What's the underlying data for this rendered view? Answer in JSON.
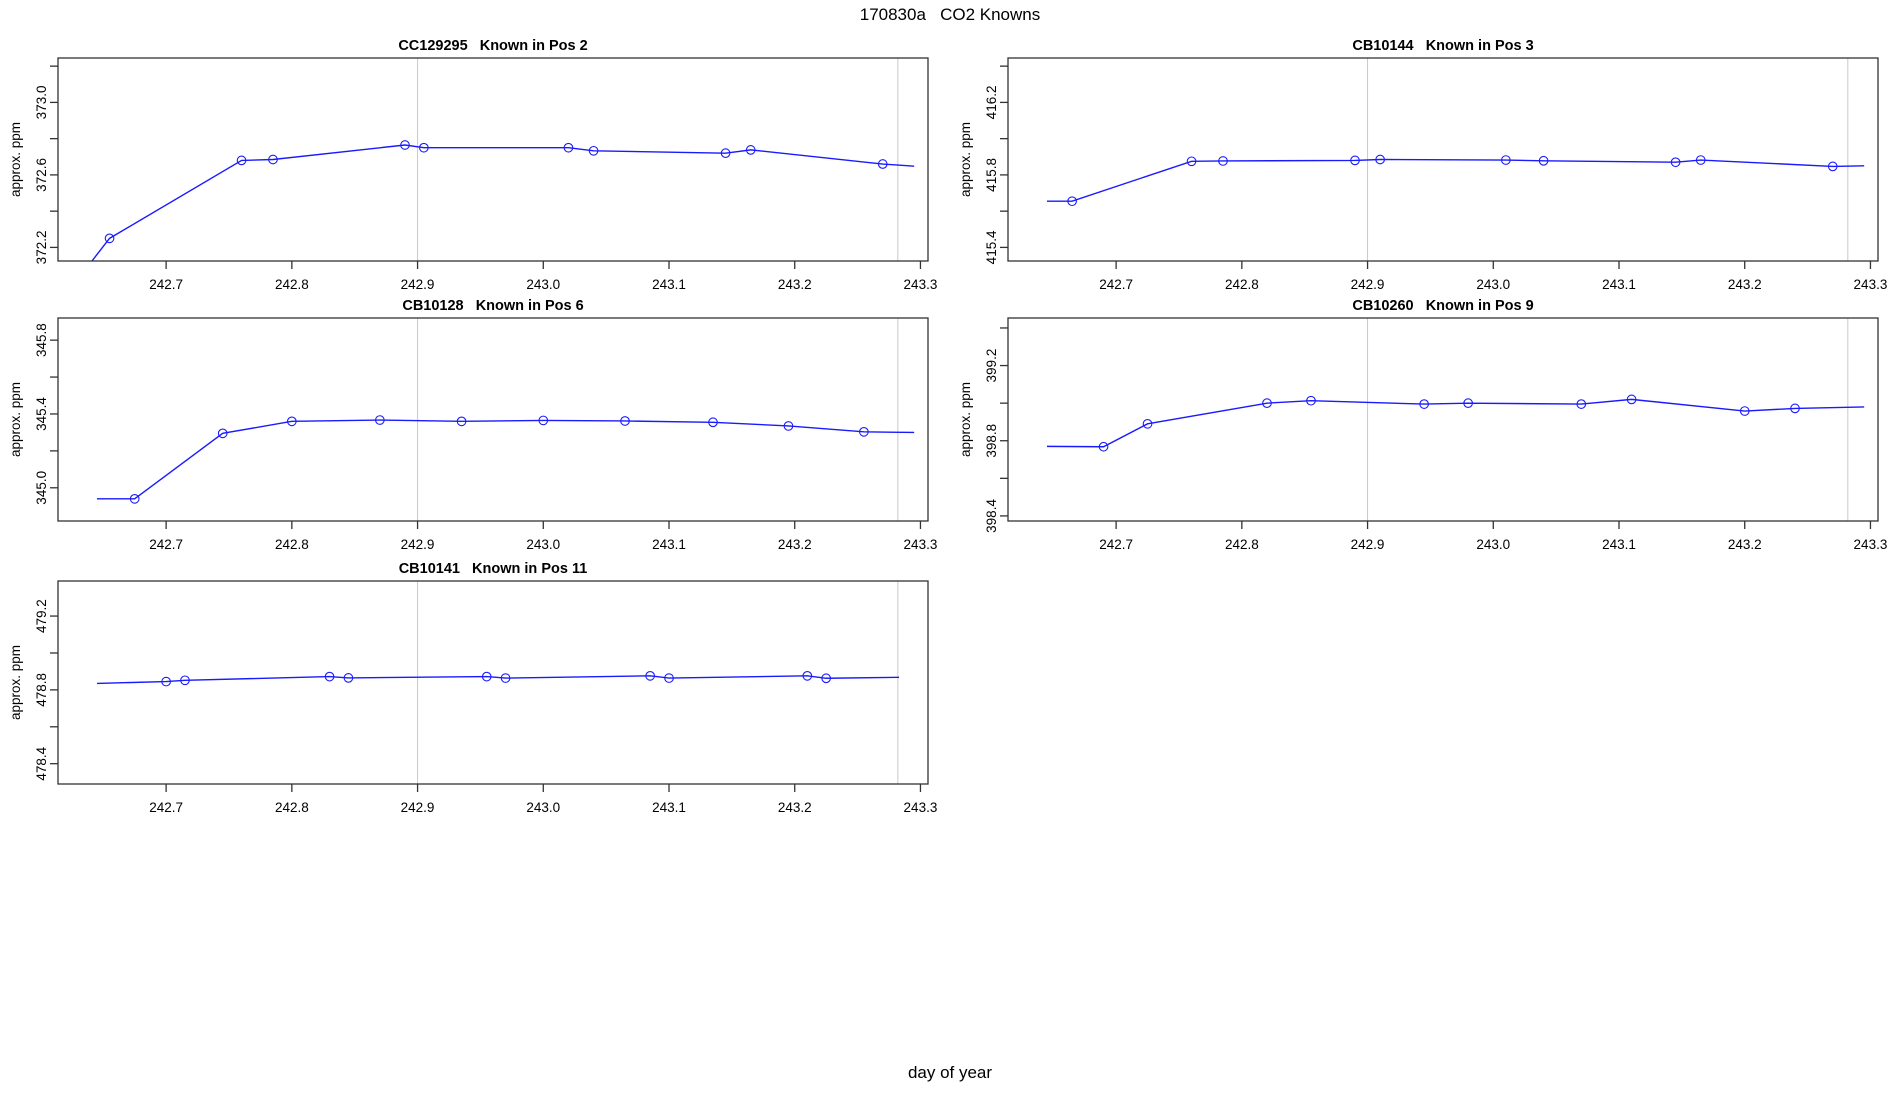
{
  "figure": {
    "title": "170830a   CO2 Knowns",
    "xlabel": "day of year",
    "line_color": "#1a1aff",
    "grid_color": "#c9c9c9",
    "box_color": "#333333",
    "text_color": "#000000",
    "xlim": [
      242.614,
      243.306
    ],
    "x_ticks": [
      {
        "v": 242.7,
        "label": "242.7"
      },
      {
        "v": 242.8,
        "label": "242.8"
      },
      {
        "v": 242.9,
        "label": "242.9"
      },
      {
        "v": 243.0,
        "label": "243.0"
      },
      {
        "v": 243.1,
        "label": "243.1"
      },
      {
        "v": 243.2,
        "label": "243.2"
      },
      {
        "v": 243.3,
        "label": "243.3"
      }
    ],
    "gridlines_x": [
      242.9,
      243.282
    ]
  },
  "chart_data": [
    {
      "type": "line",
      "title": "CC129295   Known in Pos 2",
      "sample": "CC129295",
      "position": "Known in Pos 2",
      "ylabel": "approx. ppm",
      "row": 0,
      "col": 0,
      "ylim": [
        372.125,
        373.245
      ],
      "yticks": [
        {
          "v": 372.2,
          "label": "372.2"
        },
        {
          "v": 372.4,
          "label": ""
        },
        {
          "v": 372.6,
          "label": "372.6"
        },
        {
          "v": 372.8,
          "label": ""
        },
        {
          "v": 373.0,
          "label": "373.0"
        },
        {
          "v": 373.2,
          "label": ""
        }
      ],
      "line": [
        [
          242.641,
          372.125
        ],
        [
          242.655,
          372.25
        ],
        [
          242.76,
          372.68
        ],
        [
          242.785,
          372.685
        ],
        [
          242.89,
          372.765
        ],
        [
          242.905,
          372.75
        ],
        [
          243.02,
          372.75
        ],
        [
          243.04,
          372.733
        ],
        [
          243.145,
          372.72
        ],
        [
          243.165,
          372.738
        ],
        [
          243.27,
          372.66
        ],
        [
          243.295,
          372.648
        ]
      ],
      "points": [
        [
          242.655,
          372.25
        ],
        [
          242.76,
          372.68
        ],
        [
          242.785,
          372.685
        ],
        [
          242.89,
          372.765
        ],
        [
          242.905,
          372.75
        ],
        [
          243.02,
          372.75
        ],
        [
          243.04,
          372.733
        ],
        [
          243.145,
          372.72
        ],
        [
          243.165,
          372.738
        ],
        [
          243.27,
          372.66
        ]
      ]
    },
    {
      "type": "line",
      "title": "CB10144   Known in Pos 3",
      "sample": "CB10144",
      "position": "Known in Pos 3",
      "ylabel": "approx. ppm",
      "row": 0,
      "col": 1,
      "ylim": [
        415.325,
        416.445
      ],
      "yticks": [
        {
          "v": 415.4,
          "label": "415.4"
        },
        {
          "v": 415.6,
          "label": ""
        },
        {
          "v": 415.8,
          "label": "415.8"
        },
        {
          "v": 416.0,
          "label": ""
        },
        {
          "v": 416.2,
          "label": "416.2"
        },
        {
          "v": 416.4,
          "label": ""
        }
      ],
      "line": [
        [
          242.645,
          415.655
        ],
        [
          242.665,
          415.655
        ],
        [
          242.76,
          415.875
        ],
        [
          242.785,
          415.877
        ],
        [
          242.89,
          415.88
        ],
        [
          242.91,
          415.885
        ],
        [
          243.01,
          415.882
        ],
        [
          243.04,
          415.878
        ],
        [
          243.145,
          415.87
        ],
        [
          243.165,
          415.882
        ],
        [
          243.27,
          415.847
        ],
        [
          243.295,
          415.85
        ]
      ],
      "points": [
        [
          242.665,
          415.655
        ],
        [
          242.76,
          415.875
        ],
        [
          242.785,
          415.877
        ],
        [
          242.89,
          415.88
        ],
        [
          242.91,
          415.885
        ],
        [
          243.01,
          415.882
        ],
        [
          243.04,
          415.878
        ],
        [
          243.145,
          415.87
        ],
        [
          243.165,
          415.882
        ],
        [
          243.27,
          415.847
        ]
      ]
    },
    {
      "type": "line",
      "title": "CB10128   Known in Pos 6",
      "sample": "CB10128",
      "position": "Known in Pos 6",
      "ylabel": "approx. ppm",
      "row": 1,
      "col": 0,
      "ylim": [
        344.82,
        345.92
      ],
      "yticks": [
        {
          "v": 345.0,
          "label": "345.0"
        },
        {
          "v": 345.2,
          "label": ""
        },
        {
          "v": 345.4,
          "label": "345.4"
        },
        {
          "v": 345.6,
          "label": ""
        },
        {
          "v": 345.8,
          "label": "345.8"
        }
      ],
      "line": [
        [
          242.645,
          344.94
        ],
        [
          242.675,
          344.94
        ],
        [
          242.745,
          345.295
        ],
        [
          242.8,
          345.36
        ],
        [
          242.87,
          345.367
        ],
        [
          242.935,
          345.36
        ],
        [
          243.0,
          345.365
        ],
        [
          243.065,
          345.362
        ],
        [
          243.135,
          345.355
        ],
        [
          243.195,
          345.335
        ],
        [
          243.255,
          345.303
        ],
        [
          243.295,
          345.3
        ]
      ],
      "points": [
        [
          242.675,
          344.94
        ],
        [
          242.745,
          345.295
        ],
        [
          242.8,
          345.36
        ],
        [
          242.87,
          345.367
        ],
        [
          242.935,
          345.36
        ],
        [
          243.0,
          345.365
        ],
        [
          243.065,
          345.362
        ],
        [
          243.135,
          345.355
        ],
        [
          243.195,
          345.335
        ],
        [
          243.255,
          345.303
        ]
      ]
    },
    {
      "type": "line",
      "title": "CB10260   Known in Pos 9",
      "sample": "CB10260",
      "position": "Known in Pos 9",
      "ylabel": "approx. ppm",
      "row": 1,
      "col": 1,
      "ylim": [
        398.373,
        399.453
      ],
      "yticks": [
        {
          "v": 398.4,
          "label": "398.4"
        },
        {
          "v": 398.6,
          "label": ""
        },
        {
          "v": 398.8,
          "label": "398.8"
        },
        {
          "v": 399.0,
          "label": ""
        },
        {
          "v": 399.2,
          "label": "399.2"
        },
        {
          "v": 399.4,
          "label": ""
        }
      ],
      "line": [
        [
          242.645,
          398.77
        ],
        [
          242.69,
          398.768
        ],
        [
          242.725,
          398.89
        ],
        [
          242.82,
          399.0
        ],
        [
          242.855,
          399.013
        ],
        [
          242.945,
          398.995
        ],
        [
          242.98,
          399.0
        ],
        [
          243.07,
          398.995
        ],
        [
          243.11,
          399.02
        ],
        [
          243.2,
          398.958
        ],
        [
          243.24,
          398.972
        ],
        [
          243.295,
          398.98
        ]
      ],
      "points": [
        [
          242.69,
          398.768
        ],
        [
          242.725,
          398.89
        ],
        [
          242.82,
          399.0
        ],
        [
          242.855,
          399.013
        ],
        [
          242.945,
          398.995
        ],
        [
          242.98,
          399.0
        ],
        [
          243.07,
          398.995
        ],
        [
          243.11,
          399.02
        ],
        [
          243.2,
          398.958
        ],
        [
          243.24,
          398.972
        ]
      ]
    },
    {
      "type": "line",
      "title": "CB10141   Known in Pos 11",
      "sample": "CB10141",
      "position": "Known in Pos 11",
      "ylabel": "approx. ppm",
      "row": 2,
      "col": 0,
      "ylim": [
        478.29,
        479.39
      ],
      "yticks": [
        {
          "v": 478.4,
          "label": "478.4"
        },
        {
          "v": 478.6,
          "label": ""
        },
        {
          "v": 478.8,
          "label": "478.8"
        },
        {
          "v": 479.0,
          "label": ""
        },
        {
          "v": 479.2,
          "label": "479.2"
        }
      ],
      "line": [
        [
          242.645,
          478.835
        ],
        [
          242.7,
          478.845
        ],
        [
          242.715,
          478.852
        ],
        [
          242.83,
          478.872
        ],
        [
          242.845,
          478.865
        ],
        [
          242.955,
          478.872
        ],
        [
          242.97,
          478.864
        ],
        [
          243.085,
          478.876
        ],
        [
          243.1,
          478.864
        ],
        [
          243.21,
          478.876
        ],
        [
          243.225,
          478.863
        ],
        [
          243.283,
          478.868
        ]
      ],
      "points": [
        [
          242.7,
          478.845
        ],
        [
          242.715,
          478.852
        ],
        [
          242.83,
          478.872
        ],
        [
          242.845,
          478.865
        ],
        [
          242.955,
          478.872
        ],
        [
          242.97,
          478.864
        ],
        [
          243.085,
          478.876
        ],
        [
          243.1,
          478.864
        ],
        [
          243.21,
          478.876
        ],
        [
          243.225,
          478.863
        ]
      ]
    }
  ]
}
